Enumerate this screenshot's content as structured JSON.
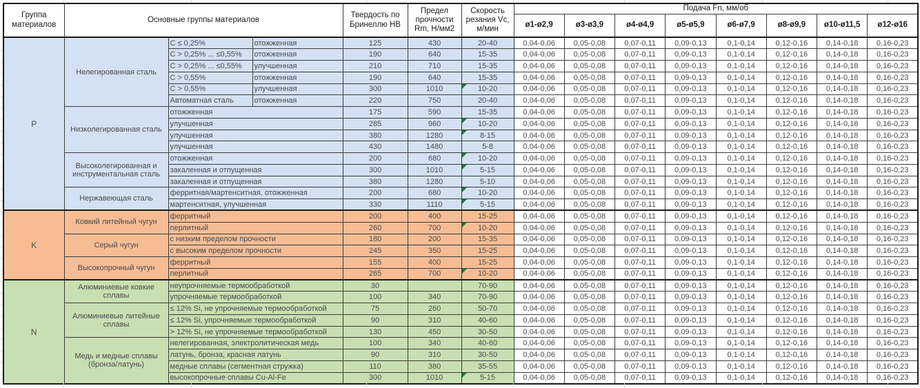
{
  "colors": {
    "group_p": "#d3e1f2",
    "group_k": "#f6bd95",
    "group_n": "#c8dfb3",
    "flag_green": "#1e7a3c",
    "grid_line": "#3c3c3c"
  },
  "table": {
    "header": {
      "col_group": "Группа материалов",
      "col_main": "Основные группы материалов",
      "col_hardness": "Твердость по Бринеллю HB",
      "col_strength": "Предел прочности Rm, Н/мм2",
      "col_speed": "Скорость резания Vc, м/мин",
      "col_feed": "Подача Fn, мм/об",
      "feed_cols": [
        "ø1-ø2,9",
        "ø3-ø3,9",
        "ø4-ø4,9",
        "ø5-ø5,9",
        "ø6-ø7,9",
        "ø8-ø9,9",
        "ø10-ø11,5",
        "ø12-ø16"
      ]
    },
    "feed_values": [
      "0,04-0,06",
      "0,05-0,08",
      "0,07-0,11",
      "0,09-0,13",
      "0,1-0,14",
      "0,12-0,16",
      "0,14-0,18",
      "0,16-0,23"
    ],
    "groups": [
      {
        "code": "P",
        "color": "#d3e1f2",
        "subgroups": [
          {
            "name": "Нелегированная сталь",
            "rows": [
              {
                "c1": "C ≤ 0,25%",
                "c2": "отожженная",
                "hb": "125",
                "rm": "430",
                "vc": "20-40",
                "flag": false
              },
              {
                "c1": "C > 0,25% ... ≤0,55%",
                "c2": "отожженная",
                "hb": "190",
                "rm": "640",
                "vc": "15-35",
                "flag": false
              },
              {
                "c1": "C > 0,25% ... ≤0,55%",
                "c2": "улучшенная",
                "hb": "210",
                "rm": "710",
                "vc": "15-35",
                "flag": false
              },
              {
                "c1": "C > 0,55%",
                "c2": "отожженная",
                "hb": "190",
                "rm": "640",
                "vc": "15-35",
                "flag": false
              },
              {
                "c1": "C > 0,55%",
                "c2": "улучшенная",
                "hb": "300",
                "rm": "1010",
                "vc": "10-20",
                "flag": true
              },
              {
                "c1": "Автоматная сталь",
                "c2": "отожженная",
                "hb": "220",
                "rm": "750",
                "vc": "20-40",
                "flag": false
              }
            ]
          },
          {
            "name": "Низколегированная сталь",
            "rows": [
              {
                "desc": "отожженная",
                "hb": "175",
                "rm": "590",
                "vc": "15-35",
                "flag": false
              },
              {
                "desc": "улучшенная",
                "hb": "285",
                "rm": "960",
                "vc": "10-20",
                "flag": true
              },
              {
                "desc": "улучшенная",
                "hb": "380",
                "rm": "1280",
                "vc": "8-15",
                "flag": true
              },
              {
                "desc": "улучшенная",
                "hb": "430",
                "rm": "1480",
                "vc": "5-8",
                "flag": false
              }
            ]
          },
          {
            "name": "Высоколегированная и инструментальная сталь",
            "rows": [
              {
                "desc": "отожженная",
                "hb": "200",
                "rm": "680",
                "vc": "10-20",
                "flag": true
              },
              {
                "desc": "закаленная и отпущенная",
                "hb": "300",
                "rm": "1010",
                "vc": "5-15",
                "flag": true
              },
              {
                "desc": "закаленная и отпущенная",
                "hb": "380",
                "rm": "1280",
                "vc": "5-10",
                "flag": false
              }
            ]
          },
          {
            "name": "Нержавеющая сталь",
            "rows": [
              {
                "desc": "ферритная/мартенситная, отожженная",
                "hb": "200",
                "rm": "680",
                "vc": "10-20",
                "flag": true
              },
              {
                "desc": "мартенситная, улучшенная",
                "hb": "330",
                "rm": "1110",
                "vc": "5-15",
                "flag": true
              }
            ]
          }
        ]
      },
      {
        "code": "K",
        "color": "#f6bd95",
        "subgroups": [
          {
            "name": "Ковкий литейный чугун",
            "rows": [
              {
                "desc": "ферритный",
                "hb": "200",
                "rm": "400",
                "vc": "15-25",
                "flag": false
              },
              {
                "desc": "перлитный",
                "hb": "260",
                "rm": "700",
                "vc": "10-20",
                "flag": true
              }
            ]
          },
          {
            "name": "Серый чугун",
            "rows": [
              {
                "desc": "с низким пределом прочности",
                "hb": "180",
                "rm": "200",
                "vc": "15-35",
                "flag": false
              },
              {
                "desc": "с высоким пределом прочности",
                "hb": "245",
                "rm": "350",
                "vc": "15-25",
                "flag": false
              }
            ]
          },
          {
            "name": "Высокопрочный чугун",
            "rows": [
              {
                "desc": "ферритный",
                "hb": "155",
                "rm": "400",
                "vc": "15-25",
                "flag": false
              },
              {
                "desc": "перлитный",
                "hb": "265",
                "rm": "700",
                "vc": "10-20",
                "flag": true
              }
            ]
          }
        ]
      },
      {
        "code": "N",
        "color": "#c8dfb3",
        "subgroups": [
          {
            "name": "Алюминиевые ковкие сплавы",
            "rows": [
              {
                "desc": "неупрочняемые термообработкой",
                "hb": "30",
                "rm": "",
                "vc": "70-90",
                "flag": false
              },
              {
                "desc": "упрочняемые термообработкой",
                "hb": "100",
                "rm": "340",
                "vc": "70-90",
                "flag": false
              }
            ]
          },
          {
            "name": "Алюминиевые литейные сплавы",
            "rows": [
              {
                "desc": "≤ 12% Si, не упрочняемые термообработкой",
                "hb": "75",
                "rm": "260",
                "vc": "50-70",
                "flag": false
              },
              {
                "desc": "≤ 12% Si, упрочняемые термообработкой",
                "hb": "90",
                "rm": "310",
                "vc": "40-60",
                "flag": false
              },
              {
                "desc": "> 12% Si, не упрочняемые термообработкой",
                "hb": "130",
                "rm": "450",
                "vc": "30-50",
                "flag": false
              }
            ]
          },
          {
            "name": "Медь и медные сплавы (бронза/латунь)",
            "rows": [
              {
                "desc": "нелегированная, электролитическая медь",
                "hb": "100",
                "rm": "340",
                "vc": "40-60",
                "flag": false
              },
              {
                "desc": "латунь, бронза, красная латунь",
                "hb": "90",
                "rm": "310",
                "vc": "30-50",
                "flag": false
              },
              {
                "desc": "медные сплавы (сегментная стружка)",
                "hb": "110",
                "rm": "380",
                "vc": "35-55",
                "flag": false
              },
              {
                "desc": "высокопрочные сплавы Cu-Al-Fe",
                "hb": "300",
                "rm": "1010",
                "vc": "5-15",
                "flag": true
              }
            ]
          }
        ]
      }
    ]
  }
}
